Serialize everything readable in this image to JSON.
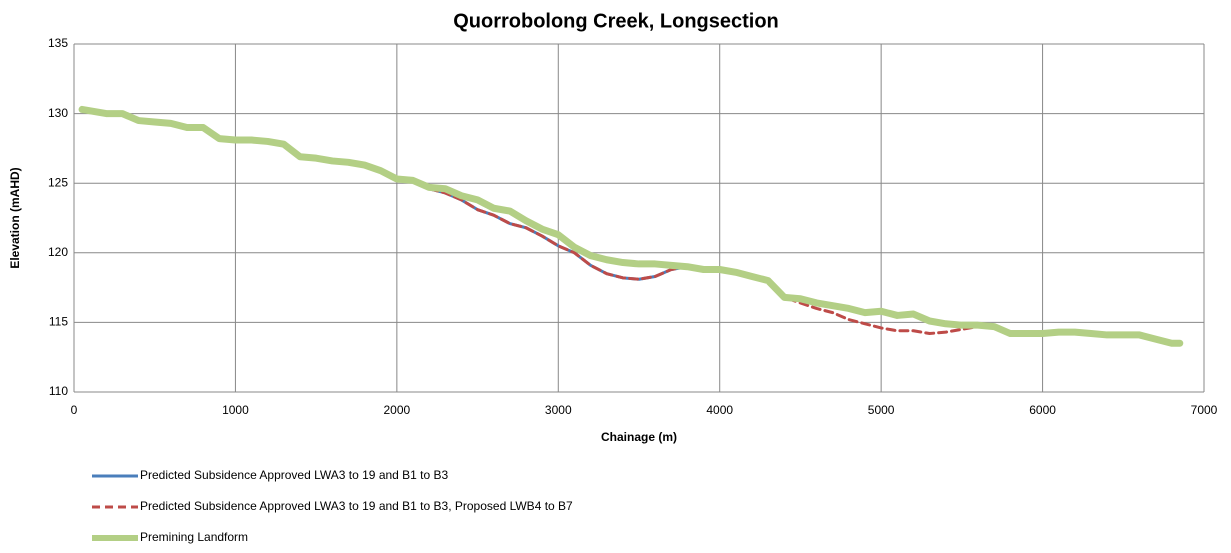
{
  "chart_data": {
    "type": "line",
    "title": "Quorrobolong Creek, Longsection",
    "x_label": "Chainage (m)",
    "y_label": "Elevation (mAHD)",
    "x": [
      50,
      100,
      200,
      300,
      400,
      500,
      600,
      700,
      800,
      900,
      1000,
      1100,
      1200,
      1300,
      1400,
      1500,
      1600,
      1700,
      1800,
      1900,
      2000,
      2100,
      2200,
      2300,
      2400,
      2500,
      2600,
      2700,
      2800,
      2900,
      3000,
      3100,
      3200,
      3300,
      3400,
      3500,
      3600,
      3700,
      3800,
      3900,
      4000,
      4100,
      4200,
      4300,
      4400,
      4500,
      4600,
      4700,
      4800,
      4900,
      5000,
      5100,
      5200,
      5300,
      5400,
      5500,
      5600,
      5700,
      5800,
      5900,
      6000,
      6100,
      6200,
      6300,
      6400,
      6500,
      6600,
      6700,
      6800,
      6850
    ],
    "series": [
      {
        "name": "Predicted Subsidence Approved LWA3 to 19 and B1 to B3",
        "color": "#4a7ebb",
        "dashed": false,
        "values": [
          130.3,
          130.2,
          130.0,
          130.0,
          129.5,
          129.4,
          129.3,
          129.0,
          129.0,
          128.2,
          128.1,
          128.1,
          128.0,
          127.8,
          126.9,
          126.8,
          126.6,
          126.5,
          126.3,
          125.9,
          125.3,
          125.2,
          124.6,
          124.3,
          123.8,
          123.1,
          122.7,
          122.1,
          121.8,
          121.2,
          120.5,
          120.0,
          119.1,
          118.5,
          118.2,
          118.1,
          118.3,
          118.8,
          119.0,
          118.8,
          118.8,
          118.6,
          118.3,
          118.0,
          116.8,
          116.7,
          116.4,
          116.2,
          116.0,
          115.7,
          115.8,
          115.5,
          115.6,
          115.1,
          114.9,
          114.8,
          114.8,
          114.7,
          114.2,
          114.2,
          114.2,
          114.3,
          114.3,
          114.2,
          114.1,
          114.1,
          114.1,
          113.8,
          113.5,
          113.5
        ]
      },
      {
        "name": "Predicted Subsidence Approved LWA3 to 19 and B1 to B3, Proposed LWB4 to B7",
        "color": "#be4b48",
        "dashed": true,
        "values": [
          130.3,
          130.2,
          130.0,
          130.0,
          129.5,
          129.4,
          129.3,
          129.0,
          129.0,
          128.2,
          128.1,
          128.1,
          128.0,
          127.8,
          126.9,
          126.8,
          126.6,
          126.5,
          126.3,
          125.9,
          125.3,
          125.2,
          124.6,
          124.3,
          123.8,
          123.1,
          122.7,
          122.1,
          121.8,
          121.2,
          120.5,
          120.0,
          119.1,
          118.5,
          118.2,
          118.1,
          118.3,
          118.8,
          119.0,
          118.8,
          118.8,
          118.6,
          118.3,
          118.0,
          116.8,
          116.4,
          116.0,
          115.7,
          115.2,
          114.9,
          114.6,
          114.4,
          114.4,
          114.2,
          114.3,
          114.5,
          114.7,
          114.7,
          114.2,
          114.2,
          114.2,
          114.3,
          114.3,
          114.2,
          114.1,
          114.1,
          114.1,
          113.8,
          113.5,
          113.5
        ]
      },
      {
        "name": "Premining Landform",
        "color": "#b3cf85",
        "dashed": false,
        "values": [
          130.3,
          130.2,
          130.0,
          130.0,
          129.5,
          129.4,
          129.3,
          129.0,
          129.0,
          128.2,
          128.1,
          128.1,
          128.0,
          127.8,
          126.9,
          126.8,
          126.6,
          126.5,
          126.3,
          125.9,
          125.3,
          125.2,
          124.7,
          124.6,
          124.1,
          123.8,
          123.2,
          123.0,
          122.3,
          121.7,
          121.3,
          120.4,
          119.8,
          119.5,
          119.3,
          119.2,
          119.2,
          119.1,
          119.0,
          118.8,
          118.8,
          118.6,
          118.3,
          118.0,
          116.8,
          116.7,
          116.4,
          116.2,
          116.0,
          115.7,
          115.8,
          115.5,
          115.6,
          115.1,
          114.9,
          114.8,
          114.8,
          114.7,
          114.2,
          114.2,
          114.2,
          114.3,
          114.3,
          114.2,
          114.1,
          114.1,
          114.1,
          113.8,
          113.5,
          113.5
        ]
      }
    ],
    "xlim": [
      0,
      7000
    ],
    "xticks": [
      0,
      1000,
      2000,
      3000,
      4000,
      5000,
      6000,
      7000
    ],
    "ylim": [
      110,
      135
    ],
    "yticks": [
      110,
      115,
      120,
      125,
      130,
      135
    ],
    "grid": true,
    "legend": "bottom"
  }
}
